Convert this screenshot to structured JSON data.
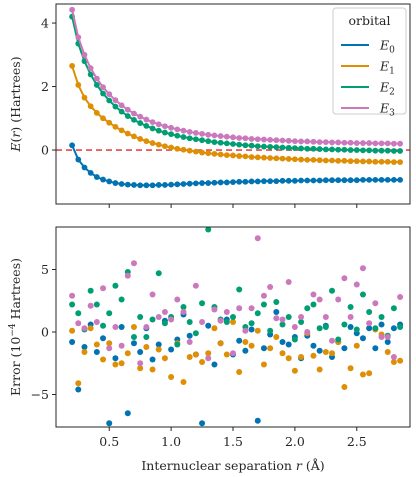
{
  "chart_data": [
    {
      "type": "line",
      "ylabel": "E(r) (Hartrees)",
      "xlim": [
        0.07,
        2.93
      ],
      "ylim": [
        -1.7,
        4.6
      ],
      "xticks": [
        0.5,
        1.0,
        1.5,
        2.0,
        2.5
      ],
      "xtick_labels_visible": false,
      "yticks": [
        0,
        2,
        4
      ],
      "ytick_labels": [
        "0",
        "2",
        "4"
      ],
      "reference_line": {
        "y": 0,
        "color": "#e8474b",
        "style": "dashed"
      },
      "legend": {
        "title": "orbital",
        "placement": "top-right"
      },
      "colors": [
        "#0173b2",
        "#de8f05",
        "#029e73",
        "#cc78bc"
      ],
      "r_start": 0.2,
      "r_step": 0.05,
      "n_points": 54,
      "series": [
        {
          "name": "E0",
          "label_base": "E",
          "label_sub": "0",
          "values": [
            0.15,
            -0.3,
            -0.55,
            -0.72,
            -0.85,
            -0.93,
            -0.99,
            -1.04,
            -1.07,
            -1.09,
            -1.1,
            -1.11,
            -1.11,
            -1.11,
            -1.1,
            -1.1,
            -1.09,
            -1.08,
            -1.07,
            -1.06,
            -1.05,
            -1.04,
            -1.04,
            -1.03,
            -1.02,
            -1.02,
            -1.01,
            -1.0,
            -1.0,
            -0.99,
            -0.99,
            -0.98,
            -0.98,
            -0.98,
            -0.97,
            -0.97,
            -0.97,
            -0.96,
            -0.96,
            -0.96,
            -0.96,
            -0.95,
            -0.95,
            -0.95,
            -0.95,
            -0.95,
            -0.95,
            -0.94,
            -0.94,
            -0.94,
            -0.94,
            -0.94,
            -0.94,
            -0.94
          ]
        },
        {
          "name": "E1",
          "label_base": "E",
          "label_sub": "1",
          "values": [
            2.65,
            2.05,
            1.65,
            1.38,
            1.17,
            1.0,
            0.86,
            0.73,
            0.62,
            0.52,
            0.43,
            0.35,
            0.28,
            0.22,
            0.17,
            0.12,
            0.08,
            0.04,
            0.01,
            -0.02,
            -0.05,
            -0.08,
            -0.1,
            -0.12,
            -0.14,
            -0.16,
            -0.17,
            -0.19,
            -0.2,
            -0.22,
            -0.23,
            -0.24,
            -0.25,
            -0.26,
            -0.27,
            -0.28,
            -0.29,
            -0.3,
            -0.31,
            -0.31,
            -0.32,
            -0.33,
            -0.33,
            -0.34,
            -0.34,
            -0.35,
            -0.35,
            -0.36,
            -0.36,
            -0.37,
            -0.37,
            -0.37,
            -0.38,
            -0.38
          ]
        },
        {
          "name": "E2",
          "label_base": "E",
          "label_sub": "2",
          "values": [
            4.2,
            3.35,
            2.8,
            2.38,
            2.05,
            1.78,
            1.56,
            1.37,
            1.21,
            1.07,
            0.95,
            0.85,
            0.76,
            0.68,
            0.61,
            0.55,
            0.5,
            0.45,
            0.41,
            0.37,
            0.34,
            0.31,
            0.28,
            0.25,
            0.23,
            0.21,
            0.19,
            0.17,
            0.15,
            0.14,
            0.12,
            0.11,
            0.1,
            0.09,
            0.08,
            0.07,
            0.06,
            0.05,
            0.04,
            0.04,
            0.03,
            0.02,
            0.02,
            0.01,
            0.01,
            0.0,
            0.0,
            -0.01,
            -0.01,
            -0.02,
            -0.02,
            -0.02,
            -0.03,
            -0.03
          ]
        },
        {
          "name": "E3",
          "label_base": "E",
          "label_sub": "3",
          "values": [
            4.42,
            3.55,
            3.0,
            2.58,
            2.25,
            1.98,
            1.76,
            1.57,
            1.41,
            1.27,
            1.15,
            1.05,
            0.96,
            0.88,
            0.81,
            0.75,
            0.7,
            0.65,
            0.61,
            0.57,
            0.54,
            0.51,
            0.48,
            0.46,
            0.44,
            0.42,
            0.4,
            0.38,
            0.37,
            0.35,
            0.34,
            0.33,
            0.32,
            0.31,
            0.3,
            0.29,
            0.28,
            0.27,
            0.27,
            0.26,
            0.25,
            0.25,
            0.24,
            0.24,
            0.23,
            0.23,
            0.22,
            0.22,
            0.22,
            0.21,
            0.21,
            0.21,
            0.2,
            0.2
          ]
        }
      ]
    },
    {
      "type": "scatter",
      "ylabel": "Error (10^-4 Hartrees)",
      "ylabel_base": "Error (10",
      "ylabel_exp": "−4",
      "ylabel_tail": " Hartrees)",
      "xlabel": "Internuclear separation r (Å)",
      "xlabel_pre": "Internuclear separation ",
      "xlabel_var": "r",
      "xlabel_post": " (Å)",
      "xlim": [
        0.07,
        2.93
      ],
      "ylim": [
        -7.6,
        8.4
      ],
      "xticks": [
        0.5,
        1.0,
        1.5,
        2.0,
        2.5
      ],
      "xtick_labels": [
        "0.5",
        "1.0",
        "1.5",
        "2.0",
        "2.5"
      ],
      "yticks": [
        -5,
        0,
        5
      ],
      "ytick_labels": [
        "−5",
        "0",
        "5"
      ],
      "series": [
        {
          "name": "E0",
          "values": [
            -0.8,
            -4.6,
            -1.2,
            0.6,
            -1.6,
            -0.5,
            -7.3,
            -2.1,
            0.4,
            -6.5,
            -0.9,
            -1.6,
            0.3,
            -2.2,
            -1.0,
            0.9,
            -1.4,
            -0.6,
            1.4,
            -0.3,
            -1.8,
            -7.3,
            0.5,
            -2.6,
            -0.9,
            1.0,
            -1.8,
            -0.7,
            -1.5,
            0.2,
            -7.1,
            -1.3,
            -0.2,
            1.6,
            -0.8,
            -1.0,
            -0.4,
            -2.1,
            -0.3,
            -1.1,
            -1.5,
            0.5,
            -2.0,
            -0.8,
            -1.3,
            0.4,
            -0.1,
            -0.5,
            0.3,
            -1.3,
            0.6,
            -0.8,
            0.3,
            0.6
          ]
        },
        {
          "name": "E1",
          "values": [
            0.1,
            -4.1,
            -1.6,
            0.3,
            -1.0,
            -2.2,
            -0.9,
            -2.6,
            -2.5,
            -1.7,
            0.4,
            -2.9,
            -1.2,
            -3.0,
            -1.4,
            -2.1,
            -3.6,
            -0.9,
            -4.0,
            -2.0,
            -1.8,
            -2.4,
            -1.7,
            0.3,
            -0.9,
            -1.8,
            0.8,
            -3.2,
            -0.8,
            -1.1,
            0.1,
            -2.6,
            -1.3,
            -0.4,
            -1.7,
            -2.1,
            -3.1,
            -2.0,
            -0.1,
            -1.9,
            -3.0,
            -1.6,
            -1.7,
            -0.8,
            -4.4,
            -2.9,
            -1.1,
            -3.4,
            -3.3,
            0.2,
            -0.2,
            -1.6,
            -2.4,
            -2.3
          ]
        },
        {
          "name": "E2",
          "values": [
            2.2,
            1.5,
            0.2,
            3.3,
            2.2,
            0.5,
            1.5,
            3.7,
            2.6,
            4.8,
            -0.4,
            1.2,
            -0.4,
            1.0,
            4.7,
            0.7,
            1.2,
            -1.0,
            2.0,
            0.8,
            -0.1,
            2.3,
            8.2,
            2.0,
            1.0,
            0.8,
            1.2,
            3.4,
            0.4,
            0.7,
            1.5,
            2.2,
            0.1,
            2.4,
            0.6,
            1.2,
            -0.6,
            0.8,
            1.9,
            2.2,
            0.3,
            0.4,
            3.3,
            -0.6,
            0.6,
            2.0,
            0.2,
            3.0,
            1.6,
            0.3,
            1.2,
            -0.3,
            1.9,
            0.4
          ]
        },
        {
          "name": "E3",
          "values": [
            2.9,
            0.7,
            0.3,
            2.1,
            0.8,
            3.5,
            -1.3,
            0.4,
            -1.1,
            4.5,
            5.5,
            -2.5,
            0.4,
            3.0,
            1.2,
            1.6,
            1.0,
            2.6,
            1.6,
            -0.8,
            3.7,
            0.8,
            -2.1,
            1.8,
            0.9,
            1.6,
            -1.7,
            1.9,
            0.1,
            1.9,
            7.5,
            2.9,
            3.6,
            1.1,
            1.0,
            4.0,
            0.4,
            1.2,
            0.0,
            3.0,
            2.6,
            1.2,
            -0.7,
            2.6,
            4.3,
            1.2,
            3.8,
            5.1,
            0.7,
            2.3,
            -0.4,
            -0.4,
            -2.0,
            2.8
          ]
        }
      ]
    }
  ]
}
